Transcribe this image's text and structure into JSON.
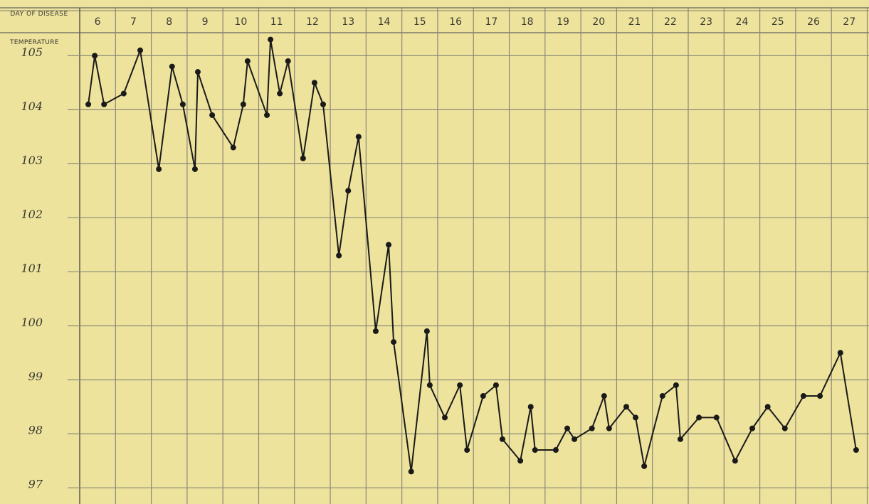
{
  "chart_data": {
    "type": "line",
    "x_label": "DAY OF DISEASE",
    "y_label": "TEMPERATURE",
    "xlim": [
      6,
      28.05
    ],
    "xticks": [
      {
        "value": 6.5,
        "label": "6"
      },
      {
        "value": 7.5,
        "label": "7"
      },
      {
        "value": 8.5,
        "label": "8"
      },
      {
        "value": 9.5,
        "label": "9"
      },
      {
        "value": 10.5,
        "label": "10"
      },
      {
        "value": 11.5,
        "label": "11"
      },
      {
        "value": 12.5,
        "label": "12"
      },
      {
        "value": 13.5,
        "label": "13"
      },
      {
        "value": 14.5,
        "label": "14"
      },
      {
        "value": 15.5,
        "label": "15"
      },
      {
        "value": 16.5,
        "label": "16"
      },
      {
        "value": 17.5,
        "label": "17"
      },
      {
        "value": 18.5,
        "label": "18"
      },
      {
        "value": 19.5,
        "label": "19"
      },
      {
        "value": 20.5,
        "label": "20"
      },
      {
        "value": 21.5,
        "label": "21"
      },
      {
        "value": 22.5,
        "label": "22"
      },
      {
        "value": 23.5,
        "label": "23"
      },
      {
        "value": 24.5,
        "label": "24"
      },
      {
        "value": 25.5,
        "label": "25"
      },
      {
        "value": 26.5,
        "label": "26"
      },
      {
        "value": 27.5,
        "label": "27"
      }
    ],
    "ylim": [
      96.7,
      105.4
    ],
    "yticks": [
      97,
      98,
      99,
      100,
      101,
      102,
      103,
      104,
      105
    ],
    "grid": true,
    "color": "#1a1a1a",
    "x": [
      6.24,
      6.42,
      6.68,
      7.23,
      7.69,
      8.21,
      8.58,
      8.88,
      9.22,
      9.3,
      9.7,
      10.29,
      10.57,
      10.69,
      11.23,
      11.33,
      11.59,
      11.82,
      12.24,
      12.56,
      12.8,
      13.24,
      13.5,
      13.79,
      14.27,
      14.63,
      14.77,
      15.26,
      15.7,
      15.78,
      16.2,
      16.62,
      16.82,
      17.27,
      17.63,
      17.81,
      18.31,
      18.6,
      18.72,
      19.3,
      19.62,
      19.82,
      20.31,
      20.65,
      20.79,
      21.27,
      21.53,
      21.77,
      22.28,
      22.66,
      22.78,
      23.3,
      23.79,
      24.31,
      24.79,
      25.22,
      25.7,
      26.22,
      26.68,
      27.25,
      27.69
    ],
    "values": [
      104.1,
      105.0,
      104.1,
      104.3,
      105.1,
      102.9,
      104.8,
      104.1,
      102.9,
      104.7,
      103.9,
      103.3,
      104.1,
      104.9,
      103.9,
      105.3,
      104.3,
      104.9,
      103.1,
      104.5,
      104.1,
      101.3,
      102.5,
      103.5,
      99.9,
      101.5,
      99.7,
      97.3,
      99.9,
      98.9,
      98.3,
      98.9,
      97.7,
      98.7,
      98.9,
      97.9,
      97.5,
      98.5,
      97.7,
      97.7,
      98.1,
      97.9,
      98.1,
      98.7,
      98.1,
      98.5,
      98.3,
      97.4,
      98.7,
      98.9,
      97.9,
      98.3,
      98.3,
      97.5,
      98.1,
      98.5,
      98.1,
      98.7,
      98.7,
      99.5,
      97.7
    ]
  }
}
